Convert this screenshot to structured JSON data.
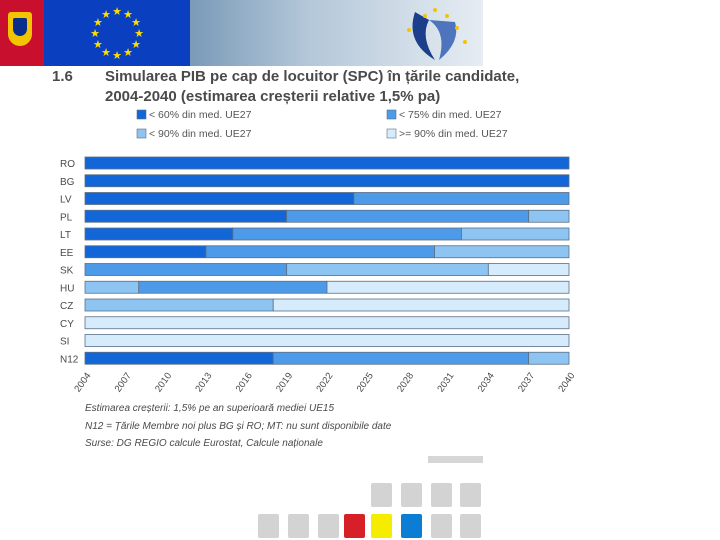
{
  "header": {
    "logo": "EU"
  },
  "figure": {
    "number": "1.6",
    "title_line1": "Simularea PIB pe cap de locuitor (SPC) în țările candidate,",
    "title_line2": "2004-2040 (estimarea creșterii relative 1,5% pa)"
  },
  "colors": {
    "c1": "#1366d8",
    "c2": "#4d9be8",
    "c3": "#8dc4f2",
    "c4": "#d6ebfb",
    "border": "#5b6f86"
  },
  "chart_data": {
    "type": "bar",
    "orientation": "horizontal-stacked",
    "title": "Simularea PIB pe cap de locuitor (SPC) în țările candidate, 2004-2040 (estimarea creșterii relative 1,5% pa)",
    "legend": [
      {
        "key": "c1",
        "label": "< 60% din med. UE27"
      },
      {
        "key": "c2",
        "label": "< 75% din med. UE27"
      },
      {
        "key": "c3",
        "label": "< 90% din med. UE27"
      },
      {
        "key": "c4",
        "label": ">= 90% din med. UE27"
      }
    ],
    "x_ticks": [
      "2004",
      "2007",
      "2010",
      "2013",
      "2016",
      "2019",
      "2022",
      "2025",
      "2028",
      "2031",
      "2034",
      "2037",
      "2040"
    ],
    "x_range": [
      2004,
      2040
    ],
    "categories": [
      "RO",
      "BG",
      "LV",
      "PL",
      "LT",
      "EE",
      "SK",
      "HU",
      "CZ",
      "CY",
      "SI",
      "N12"
    ],
    "rows": [
      {
        "label": "RO",
        "segments": [
          {
            "key": "c1",
            "from": 2004,
            "to": 2040
          }
        ]
      },
      {
        "label": "BG",
        "segments": [
          {
            "key": "c1",
            "from": 2004,
            "to": 2040
          }
        ]
      },
      {
        "label": "LV",
        "segments": [
          {
            "key": "c1",
            "from": 2004,
            "to": 2024
          },
          {
            "key": "c2",
            "from": 2024,
            "to": 2040
          }
        ]
      },
      {
        "label": "PL",
        "segments": [
          {
            "key": "c1",
            "from": 2004,
            "to": 2019
          },
          {
            "key": "c2",
            "from": 2019,
            "to": 2037
          },
          {
            "key": "c3",
            "from": 2037,
            "to": 2040
          }
        ]
      },
      {
        "label": "LT",
        "segments": [
          {
            "key": "c1",
            "from": 2004,
            "to": 2015
          },
          {
            "key": "c2",
            "from": 2015,
            "to": 2032
          },
          {
            "key": "c3",
            "from": 2032,
            "to": 2040
          }
        ]
      },
      {
        "label": "EE",
        "segments": [
          {
            "key": "c1",
            "from": 2004,
            "to": 2013
          },
          {
            "key": "c2",
            "from": 2013,
            "to": 2030
          },
          {
            "key": "c3",
            "from": 2030,
            "to": 2040
          }
        ]
      },
      {
        "label": "SK",
        "segments": [
          {
            "key": "c2",
            "from": 2004,
            "to": 2019
          },
          {
            "key": "c3",
            "from": 2019,
            "to": 2034
          },
          {
            "key": "c4",
            "from": 2034,
            "to": 2040
          }
        ]
      },
      {
        "label": "HU",
        "segments": [
          {
            "key": "c3",
            "from": 2004,
            "to": 2008
          },
          {
            "key": "c2",
            "from": 2008,
            "to": 2022
          },
          {
            "key": "c4",
            "from": 2022,
            "to": 2040
          }
        ]
      },
      {
        "label": "CZ",
        "segments": [
          {
            "key": "c3",
            "from": 2004,
            "to": 2018
          },
          {
            "key": "c4",
            "from": 2018,
            "to": 2040
          }
        ]
      },
      {
        "label": "CY",
        "segments": [
          {
            "key": "c4",
            "from": 2004,
            "to": 2040
          }
        ]
      },
      {
        "label": "SI",
        "segments": [
          {
            "key": "c4",
            "from": 2004,
            "to": 2040
          }
        ]
      },
      {
        "label": "N12",
        "segments": [
          {
            "key": "c1",
            "from": 2004,
            "to": 2018
          },
          {
            "key": "c2",
            "from": 2018,
            "to": 2037
          },
          {
            "key": "c3",
            "from": 2037,
            "to": 2040
          }
        ]
      }
    ]
  },
  "notes": [
    "Estimarea creșterii: 1,5% pe an superioară mediei UE15",
    "N12 = Țările Membre noi plus BG și RO; MT: nu sunt disponibile date",
    "Surse: DG REGIO calcule Eurostat, Calcule naționale"
  ],
  "footer_squares": {
    "colors": [
      "#d3d3d3",
      "#d3d3d3",
      "#d3d3d3",
      "#d61f26",
      "#f6ec00",
      "#0b7dd4",
      "#d3d3d3",
      "#d3d3d3"
    ]
  }
}
